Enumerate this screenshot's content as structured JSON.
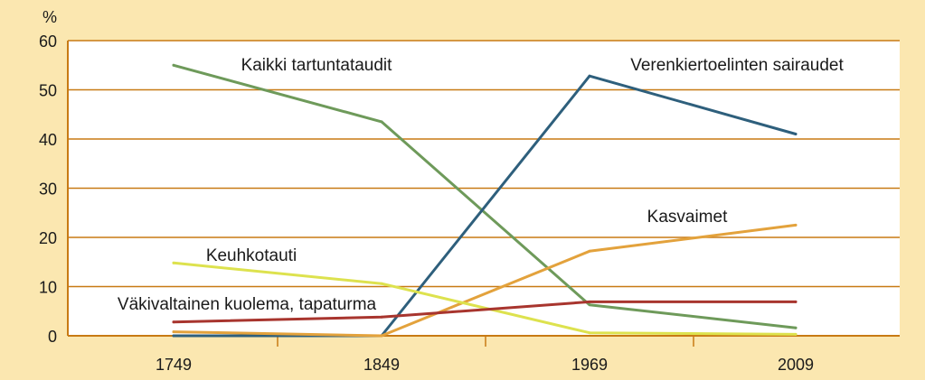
{
  "chart_data": {
    "type": "line",
    "ylabel": "%",
    "xlabel": "",
    "ylim": [
      0,
      60
    ],
    "y_ticks": [
      "0",
      "10",
      "20",
      "30",
      "40",
      "50",
      "60"
    ],
    "categories": [
      "1749",
      "1849",
      "1969",
      "2009"
    ],
    "grid": true,
    "series": [
      {
        "name": "Kaikki tartuntataudit",
        "color": "#6e9a5a",
        "values": [
          55,
          43.5,
          6.3,
          1.6
        ]
      },
      {
        "name": "Verenkiertoelinten sairaudet",
        "color": "#2e5f7c",
        "values": [
          0,
          0,
          52.8,
          41
        ]
      },
      {
        "name": "Kasvaimet",
        "color": "#e3a23c",
        "values": [
          0.8,
          0,
          17.2,
          22.5
        ]
      },
      {
        "name": "Keuhkotauti",
        "color": "#dde24e",
        "values": [
          14.8,
          10.6,
          0.6,
          0.3
        ]
      },
      {
        "name": "Väkivaltainen kuolema, tapaturma",
        "color": "#a8352e",
        "values": [
          2.8,
          3.8,
          6.9,
          6.9
        ]
      }
    ]
  },
  "colors": {
    "background": "#fbe7b0",
    "plot_background": "#ffffff",
    "grid": "#c87a14",
    "axis": "#c87a14"
  }
}
